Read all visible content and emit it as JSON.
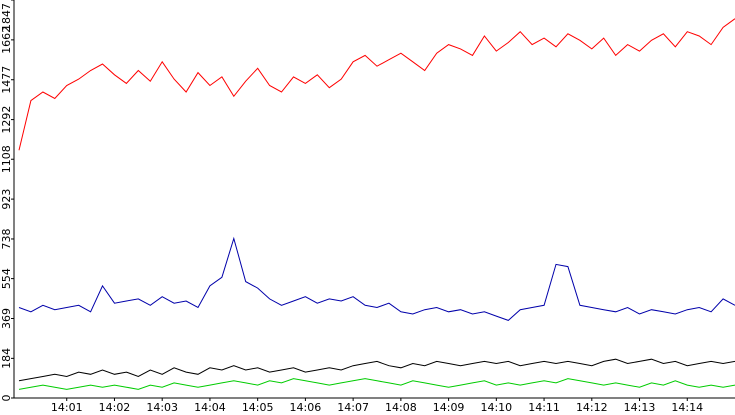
{
  "chart_data": {
    "type": "line",
    "categories": [
      null,
      null,
      null,
      null,
      "14:01",
      null,
      null,
      null,
      "14:02",
      null,
      null,
      null,
      "14:03",
      null,
      null,
      null,
      "14:04",
      null,
      null,
      null,
      "14:05",
      null,
      null,
      null,
      "14:06",
      null,
      null,
      null,
      "14:07",
      null,
      null,
      null,
      "14:08",
      null,
      null,
      null,
      "14:09",
      null,
      null,
      null,
      "14:10",
      null,
      null,
      null,
      "14:11",
      null,
      null,
      null,
      "14:12",
      null,
      null,
      null,
      "14:13",
      null,
      null,
      null,
      "14:14",
      null,
      null,
      null,
      null
    ],
    "series": [
      {
        "color": "#ff0000",
        "values": [
          1150,
          1380,
          1420,
          1390,
          1450,
          1480,
          1520,
          1550,
          1500,
          1460,
          1520,
          1470,
          1560,
          1480,
          1420,
          1510,
          1450,
          1490,
          1400,
          1470,
          1530,
          1450,
          1420,
          1490,
          1460,
          1500,
          1440,
          1480,
          1560,
          1590,
          1540,
          1570,
          1600,
          1560,
          1520,
          1600,
          1640,
          1620,
          1590,
          1680,
          1610,
          1650,
          1700,
          1640,
          1670,
          1630,
          1690,
          1660,
          1620,
          1670,
          1590,
          1640,
          1610,
          1660,
          1690,
          1630,
          1700,
          1680,
          1640,
          1720,
          1760
        ]
      },
      {
        "color": "#0000aa",
        "values": [
          420,
          400,
          430,
          410,
          420,
          430,
          400,
          520,
          440,
          450,
          460,
          430,
          470,
          440,
          450,
          420,
          520,
          560,
          740,
          540,
          510,
          460,
          430,
          450,
          470,
          440,
          460,
          450,
          470,
          430,
          420,
          440,
          400,
          390,
          410,
          420,
          400,
          410,
          390,
          400,
          380,
          360,
          410,
          420,
          430,
          620,
          610,
          430,
          420,
          410,
          400,
          420,
          390,
          410,
          400,
          390,
          410,
          420,
          400,
          460,
          430
        ]
      },
      {
        "color": "#000000",
        "values": [
          80,
          90,
          100,
          110,
          100,
          120,
          110,
          130,
          110,
          120,
          100,
          130,
          110,
          140,
          120,
          110,
          140,
          130,
          150,
          130,
          140,
          120,
          130,
          140,
          120,
          130,
          140,
          130,
          150,
          160,
          170,
          150,
          140,
          160,
          150,
          170,
          160,
          150,
          160,
          170,
          160,
          170,
          150,
          160,
          170,
          160,
          170,
          160,
          150,
          170,
          180,
          160,
          170,
          180,
          160,
          170,
          150,
          160,
          170,
          160,
          170
        ]
      },
      {
        "color": "#00cc00",
        "values": [
          40,
          50,
          60,
          50,
          40,
          50,
          60,
          50,
          60,
          50,
          40,
          60,
          50,
          70,
          60,
          50,
          60,
          70,
          80,
          70,
          60,
          80,
          70,
          90,
          80,
          70,
          60,
          70,
          80,
          90,
          80,
          70,
          60,
          80,
          70,
          60,
          50,
          60,
          70,
          80,
          60,
          70,
          60,
          70,
          80,
          70,
          90,
          80,
          70,
          60,
          70,
          60,
          50,
          70,
          60,
          80,
          60,
          50,
          60,
          50,
          60
        ]
      }
    ],
    "ylim": [
      0,
      1847
    ],
    "yticks": [
      0,
      184,
      369,
      554,
      738,
      923,
      1108,
      1292,
      1477,
      1662,
      1847
    ]
  }
}
